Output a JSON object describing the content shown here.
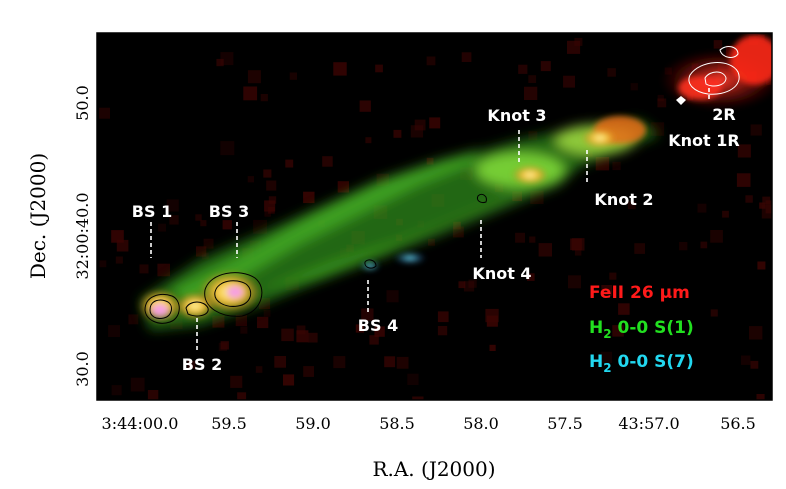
{
  "figure": {
    "xlabel": "R.A. (J2000)",
    "ylabel": "Dec. (J2000)",
    "xticks": [
      "3:44:00.0",
      "59.5",
      "59.0",
      "58.5",
      "58.0",
      "57.5",
      "43:57.0",
      "56.5"
    ],
    "yticks": [
      "30.0",
      "32:00:40.0",
      "50.0"
    ],
    "annotations": {
      "knot3": "Knot 3",
      "r2": "2R",
      "knot1r": "Knot 1R",
      "knot2": "Knot 2",
      "knot4": "Knot 4",
      "bs1": "BS 1",
      "bs3": "BS 3",
      "bs2": "BS 2",
      "bs4": "BS 4",
      "tick32": "32:00:40.0"
    },
    "legend": [
      {
        "text": "FeII 26 µm",
        "color": "#ff1a1a"
      },
      {
        "text": "H₂ 0-0 S(1)",
        "color": "#22e020"
      },
      {
        "text": "H₂ 0-0 S(7)",
        "color": "#22d8f0"
      }
    ],
    "legend_h2_prefix": "H",
    "legend_h2_sub": "2",
    "legend_s1_suffix": " 0-0 S(1)",
    "legend_s7_suffix": " 0-0 S(7)",
    "legend_fe": "FeII 26 µm"
  }
}
